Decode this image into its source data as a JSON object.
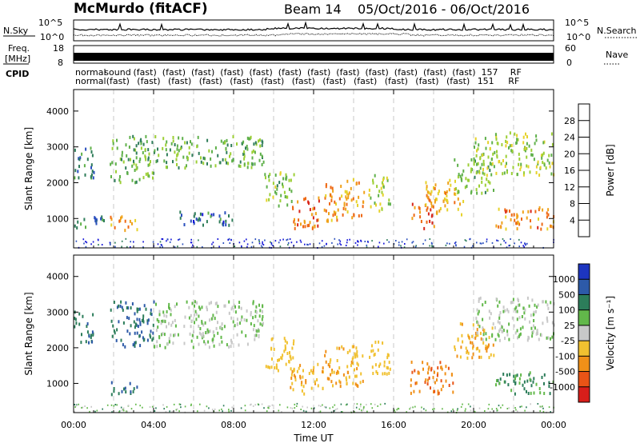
{
  "header": {
    "station": "McMurdo (fitACF)",
    "beam": "Beam 14",
    "date_range": "05/Oct/2016 - 06/Oct/2016"
  },
  "top_panels": {
    "nsky_label": "N.Sky",
    "nsearch_label": "N.Search",
    "nsky_ticks": [
      "10^5",
      "10^0"
    ],
    "nsearch_ticks": [
      "10^5",
      "10^0"
    ],
    "freq_label_line1": "Freq.",
    "freq_label_line2": "[MHz]",
    "freq_ticks": [
      "18",
      "8"
    ],
    "nave_label": "Nave",
    "nave_ticks": [
      "60",
      "0"
    ],
    "cpid_label": "CPID",
    "cpid_row1": [
      "normal",
      "sound",
      "(fast)",
      "(fast)",
      "(fast)",
      "(fast)",
      "(fast)",
      "(fast)",
      "(fast)",
      "(fast)",
      "(fast)",
      "(fast)",
      "(fast)",
      "(fast)",
      "157",
      "RF"
    ],
    "cpid_row2": [
      "normal",
      "(fast)",
      "(fast)",
      "(fast)",
      "(fast)",
      "(fast)",
      "(fast)",
      "(fast)",
      "(fast)",
      "(fast)",
      "(fast)",
      "(fast)",
      "(fast)",
      "151",
      "RF"
    ]
  },
  "chart_data": [
    {
      "type": "heatmap",
      "ylabel": "Slant Range [km]",
      "ylim": [
        180,
        4600
      ],
      "yticks": [
        1000,
        2000,
        3000,
        4000
      ],
      "xlim_hours": [
        0,
        24
      ],
      "colorbar": {
        "label": "Power [dB]",
        "ticks": [
          4,
          8,
          12,
          16,
          20,
          24,
          28
        ],
        "colors": [
          "#1515d8",
          "#2a4fbe",
          "#2f7d5a",
          "#5fb04a",
          "#9ccf35",
          "#e6d22a",
          "#f0a21a",
          "#ee6914",
          "#d8261a"
        ]
      },
      "regions": [
        {
          "t": [
            0.0,
            1.0
          ],
          "r": [
            2100,
            3000
          ],
          "v": 9
        },
        {
          "t": [
            0.0,
            1.5
          ],
          "r": [
            700,
            1100
          ],
          "v": 8
        },
        {
          "t": [
            1.8,
            3.2
          ],
          "r": [
            650,
            1050
          ],
          "v": 22
        },
        {
          "t": [
            1.8,
            4.0
          ],
          "r": [
            2000,
            3300
          ],
          "v": 12
        },
        {
          "t": [
            4.0,
            9.5
          ],
          "r": [
            2400,
            3300
          ],
          "v": 12
        },
        {
          "t": [
            5.0,
            8.0
          ],
          "r": [
            800,
            1200
          ],
          "v": 7
        },
        {
          "t": [
            9.5,
            11.0
          ],
          "r": [
            1300,
            2300
          ],
          "v": 14
        },
        {
          "t": [
            10.8,
            12.3
          ],
          "r": [
            700,
            1600
          ],
          "v": 25
        },
        {
          "t": [
            12.5,
            14.5
          ],
          "r": [
            900,
            2100
          ],
          "v": 22
        },
        {
          "t": [
            14.7,
            15.8
          ],
          "r": [
            1200,
            2200
          ],
          "v": 15
        },
        {
          "t": [
            16.8,
            18.0
          ],
          "r": [
            700,
            1400
          ],
          "v": 25
        },
        {
          "t": [
            17.5,
            19.5
          ],
          "r": [
            1100,
            2100
          ],
          "v": 21
        },
        {
          "t": [
            19.0,
            21.0
          ],
          "r": [
            1700,
            2700
          ],
          "v": 13
        },
        {
          "t": [
            20.0,
            24.0
          ],
          "r": [
            2200,
            3400
          ],
          "v": 15
        },
        {
          "t": [
            21.0,
            24.0
          ],
          "r": [
            700,
            1300
          ],
          "v": 23
        }
      ]
    },
    {
      "type": "heatmap",
      "ylabel": "Slant Range [km]",
      "xlabel": "Time UT",
      "ylim": [
        180,
        4600
      ],
      "yticks": [
        1000,
        2000,
        3000,
        4000
      ],
      "xlim_hours": [
        0,
        24
      ],
      "xticks": [
        "00:00",
        "04:00",
        "08:00",
        "12:00",
        "16:00",
        "20:00",
        "00:00"
      ],
      "colorbar": {
        "label": "Velocity [m s⁻¹]",
        "ticks": [
          "1000",
          "500",
          "100",
          "25",
          "-25",
          "-100",
          "-500",
          "-1000"
        ],
        "colors": [
          "#1d35c0",
          "#2d5aa8",
          "#2c7d5a",
          "#62b84a",
          "#c8c8c8",
          "#f1c130",
          "#f09018",
          "#e95416",
          "#d81e1a"
        ]
      },
      "regions": [
        {
          "t": [
            0.0,
            1.0
          ],
          "r": [
            2100,
            3000
          ],
          "v": 250
        },
        {
          "t": [
            1.8,
            3.2
          ],
          "r": [
            650,
            1050
          ],
          "v": 300
        },
        {
          "t": [
            1.8,
            4.0
          ],
          "r": [
            2000,
            3300
          ],
          "v": 300
        },
        {
          "t": [
            4.0,
            9.5
          ],
          "r": [
            2000,
            3300
          ],
          "v": 0
        },
        {
          "t": [
            9.5,
            11.0
          ],
          "r": [
            1300,
            2300
          ],
          "v": -150
        },
        {
          "t": [
            10.8,
            12.5
          ],
          "r": [
            700,
            1600
          ],
          "v": -300
        },
        {
          "t": [
            12.5,
            14.5
          ],
          "r": [
            900,
            2100
          ],
          "v": -300
        },
        {
          "t": [
            14.7,
            15.8
          ],
          "r": [
            1200,
            2200
          ],
          "v": -200
        },
        {
          "t": [
            16.8,
            19.0
          ],
          "r": [
            700,
            1600
          ],
          "v": -700
        },
        {
          "t": [
            19.0,
            21.0
          ],
          "r": [
            1700,
            2700
          ],
          "v": -300
        },
        {
          "t": [
            20.0,
            24.0
          ],
          "r": [
            2200,
            3400
          ],
          "v": 0
        },
        {
          "t": [
            21.0,
            24.0
          ],
          "r": [
            700,
            1300
          ],
          "v": 80
        }
      ]
    }
  ]
}
